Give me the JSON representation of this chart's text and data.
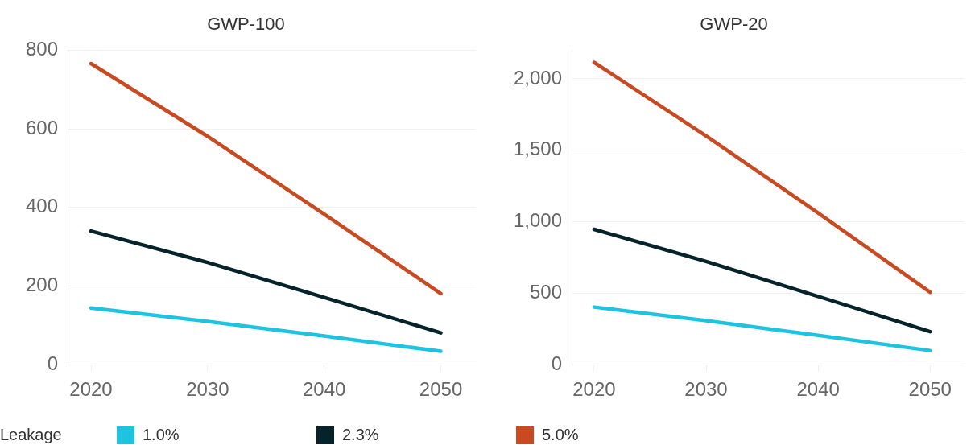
{
  "chart_data": [
    {
      "type": "line",
      "title": "GWP-100",
      "x": [
        2020,
        2030,
        2040,
        2050
      ],
      "xlim": [
        2018,
        2053
      ],
      "xticks": [
        2020,
        2030,
        2040,
        2050
      ],
      "ylim": [
        0,
        800
      ],
      "yticks": [
        0,
        200,
        400,
        600,
        800
      ],
      "grid": "y",
      "marker": "none",
      "line_style": "solid",
      "legend": "bottom",
      "legend_title": "Leakage",
      "series": [
        {
          "name": "1.0%",
          "color": "#1ec3e0",
          "values": [
            144,
            110,
            73,
            34
          ]
        },
        {
          "name": "2.3%",
          "color": "#04232b",
          "values": [
            340,
            260,
            171,
            81
          ]
        },
        {
          "name": "5.0%",
          "color": "#c94a20",
          "values": [
            766,
            581,
            383,
            181
          ]
        }
      ]
    },
    {
      "type": "line",
      "title": "GWP-20",
      "x": [
        2020,
        2030,
        2040,
        2050
      ],
      "xlim": [
        2018,
        2053
      ],
      "xticks": [
        2020,
        2030,
        2040,
        2050
      ],
      "ylim": [
        0,
        2200
      ],
      "yticks": [
        0,
        500,
        {
          "value": 1000,
          "label": "1,000"
        },
        {
          "value": 1500,
          "label": "1,500"
        },
        {
          "value": 2000,
          "label": "2,000"
        }
      ],
      "grid": "y",
      "marker": "none",
      "line_style": "solid",
      "legend": false,
      "series": [
        {
          "color": "#1ec3e0",
          "values": [
            403,
            308,
            205,
            99
          ]
        },
        {
          "color": "#04232b",
          "values": [
            947,
            722,
            478,
            231
          ]
        },
        {
          "color": "#c94a20",
          "values": [
            2115,
            1601,
            1062,
            507
          ]
        }
      ]
    }
  ]
}
